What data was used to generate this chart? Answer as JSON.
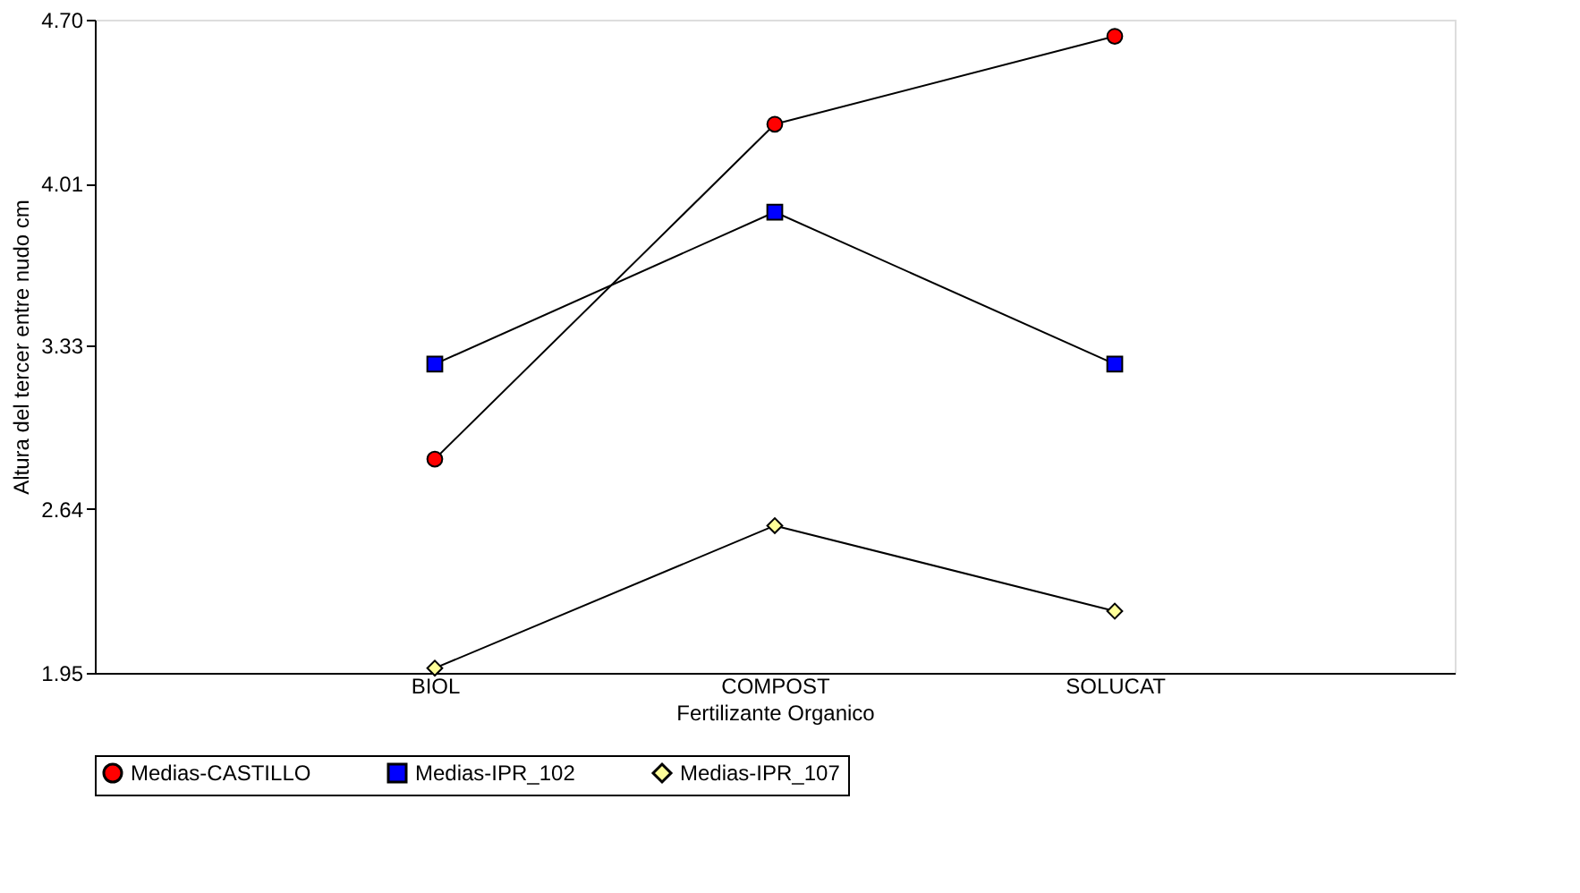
{
  "chart_data": {
    "type": "line",
    "xlabel": "Fertilizante Organico",
    "ylabel": "Altura del tercer entre nudo cm",
    "categories": [
      "BIOL",
      "COMPOST",
      "SOLUCAT"
    ],
    "series": [
      {
        "name": "Medias-CASTILLO",
        "color": "#ff0000",
        "marker": "circle",
        "values": [
          2.85,
          4.26,
          4.63
        ]
      },
      {
        "name": "Medias-IPR_102",
        "color": "#0000ff",
        "marker": "square",
        "values": [
          3.25,
          3.89,
          3.25
        ]
      },
      {
        "name": "Medias-IPR_107",
        "color": "#ffff99",
        "marker": "diamond",
        "values": [
          1.97,
          2.57,
          2.21
        ]
      }
    ],
    "ylim": [
      1.95,
      4.7
    ],
    "yticks": [
      1.95,
      2.64,
      3.33,
      4.01,
      {
        "value": 4.7,
        "label": "4.70"
      }
    ],
    "grid": false,
    "legend": "bottom",
    "line_style": "solid"
  }
}
